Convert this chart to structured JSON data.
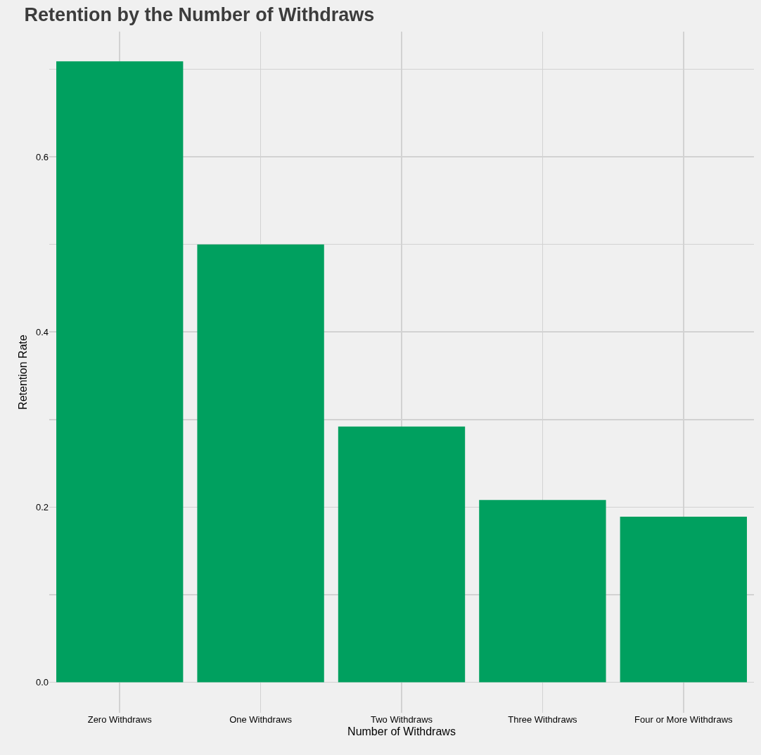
{
  "chart_data": {
    "type": "bar",
    "title": "Retention by the Number of Withdraws",
    "xlabel": "Number of Withdraws",
    "ylabel": "Retention Rate",
    "categories": [
      "Zero Withdraws",
      "One Withdraws",
      "Two Withdraws",
      "Three Withdraws",
      "Four or More Withdraws"
    ],
    "values": [
      0.709,
      0.5,
      0.292,
      0.208,
      0.189
    ],
    "color": "#00a05f",
    "ylim": [
      -0.035,
      0.743
    ],
    "yticks": [
      {
        "value": 0,
        "label": "0.0"
      },
      {
        "value": 0.1,
        "label": null
      },
      {
        "value": 0.2,
        "label": "0.2"
      },
      {
        "value": 0.3,
        "label": null
      },
      {
        "value": 0.4,
        "label": "0.4"
      },
      {
        "value": 0.5,
        "label": null
      },
      {
        "value": 0.6,
        "label": "0.6"
      },
      {
        "value": 0.7,
        "label": null
      }
    ],
    "grid": true
  }
}
